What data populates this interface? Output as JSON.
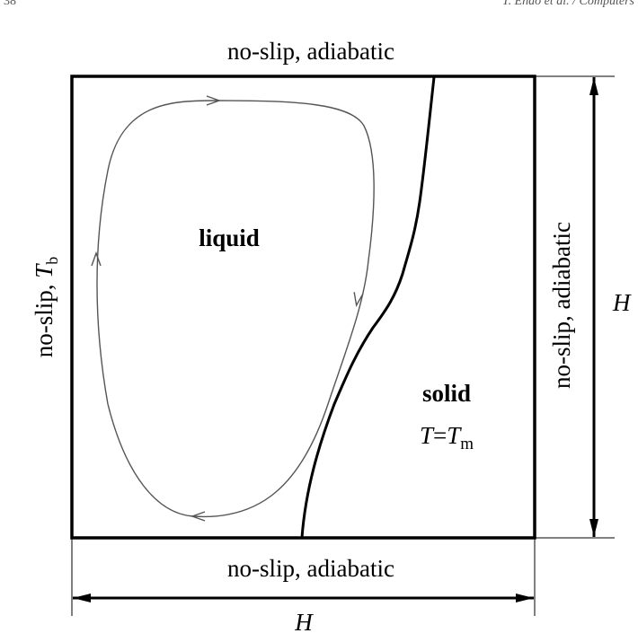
{
  "header": {
    "page_number": "38",
    "running_title": "T. Endo et al. / Computers"
  },
  "boundaries": {
    "top": "no-slip, adiabatic",
    "bottom": "no-slip, adiabatic",
    "right": "no-slip, adiabatic",
    "left_text": "no-slip, ",
    "left_symbol": "T",
    "left_subscript": "b"
  },
  "regions": {
    "liquid": "liquid",
    "solid": "solid",
    "solid_eq_T": "T",
    "solid_eq_equals": "=",
    "solid_eq_Tm": "T",
    "solid_eq_sub": "m"
  },
  "dimensions": {
    "height_label": "H",
    "width_label": "H"
  }
}
